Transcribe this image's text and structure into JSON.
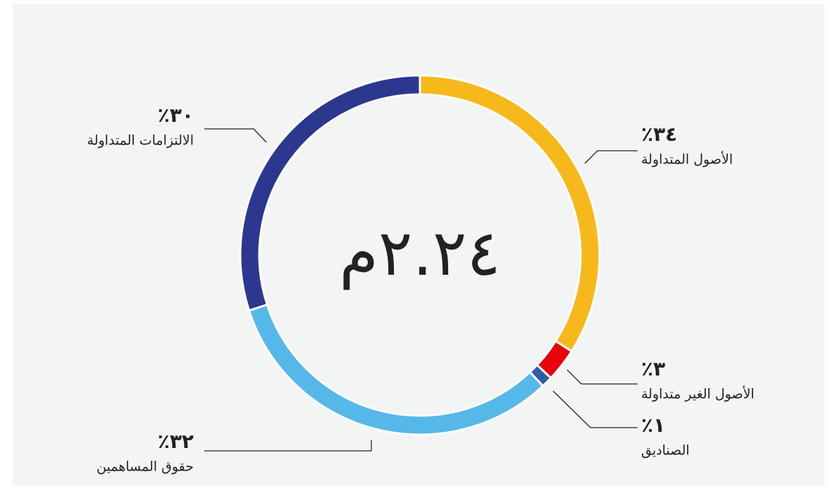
{
  "chart_data": {
    "type": "donut",
    "center_label": "٢.٢٤م",
    "categories": [
      "الأصول المتداولة",
      "الأصول الغير متداولة",
      "الصناديق",
      "حقوق المساهمين",
      "الالتزامات المتداولة"
    ],
    "values": [
      34,
      3,
      1,
      32,
      30
    ],
    "value_labels": [
      "٪٣٤",
      "٪٣",
      "٪١",
      "٪٣٢",
      "٪٣٠"
    ],
    "colors": [
      "#f7b81b",
      "#e8040b",
      "#2f5ea8",
      "#55b8e8",
      "#2c3790"
    ]
  }
}
